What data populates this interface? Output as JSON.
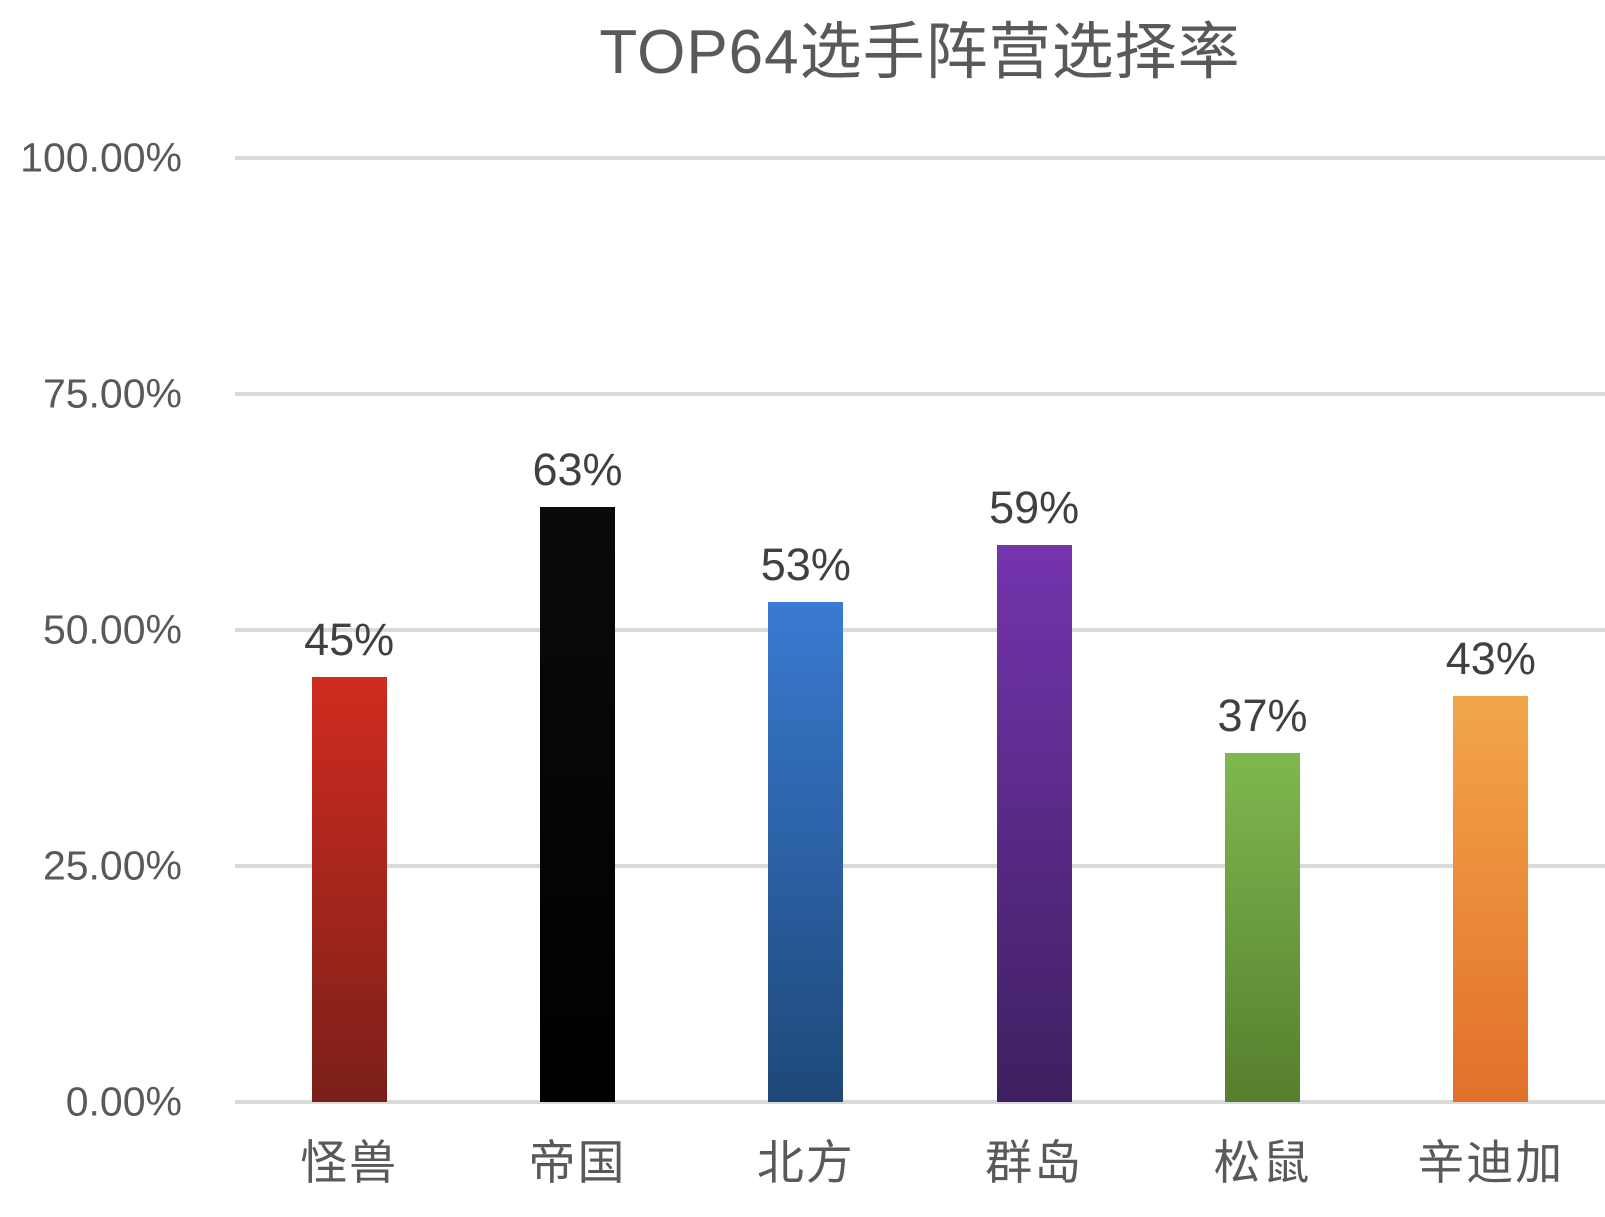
{
  "chart_data": {
    "type": "bar",
    "title": "TOP64选手阵营选择率",
    "categories": [
      "怪兽",
      "帝国",
      "北方",
      "群岛",
      "松鼠",
      "辛迪加"
    ],
    "values": [
      45,
      63,
      53,
      59,
      37,
      43
    ],
    "data_labels": [
      "45%",
      "63%",
      "53%",
      "59%",
      "37%",
      "43%"
    ],
    "series": [
      {
        "category": "怪兽",
        "value": 45,
        "label": "45%",
        "color_top": "#D02B1F",
        "color_bottom": "#7A2019"
      },
      {
        "category": "帝国",
        "value": 63,
        "label": "63%",
        "color_top": "#0A0A0A",
        "color_bottom": "#000000"
      },
      {
        "category": "北方",
        "value": 53,
        "label": "53%",
        "color_top": "#3A7AD1",
        "color_bottom": "#1E4878"
      },
      {
        "category": "群岛",
        "value": 59,
        "label": "59%",
        "color_top": "#7434AE",
        "color_bottom": "#3E2060"
      },
      {
        "category": "松鼠",
        "value": 37,
        "label": "37%",
        "color_top": "#7FB84F",
        "color_bottom": "#567E2E"
      },
      {
        "category": "辛迪加",
        "value": 43,
        "label": "43%",
        "color_top": "#F2A649",
        "color_bottom": "#E2702A"
      }
    ],
    "y_axis": {
      "min": 0,
      "max": 100,
      "ticks": [
        {
          "label": "0.00%",
          "value": 0
        },
        {
          "label": "25.00%",
          "value": 25
        },
        {
          "label": "50.00%",
          "value": 50
        },
        {
          "label": "75.00%",
          "value": 75
        },
        {
          "label": "100.00%",
          "value": 100
        }
      ]
    },
    "grid": {
      "horizontal": true,
      "color": "#D9D9D9"
    },
    "legend_position": "none",
    "text_colors": {
      "title": "#595959",
      "axis": "#595959",
      "data_label": "#404040"
    }
  }
}
